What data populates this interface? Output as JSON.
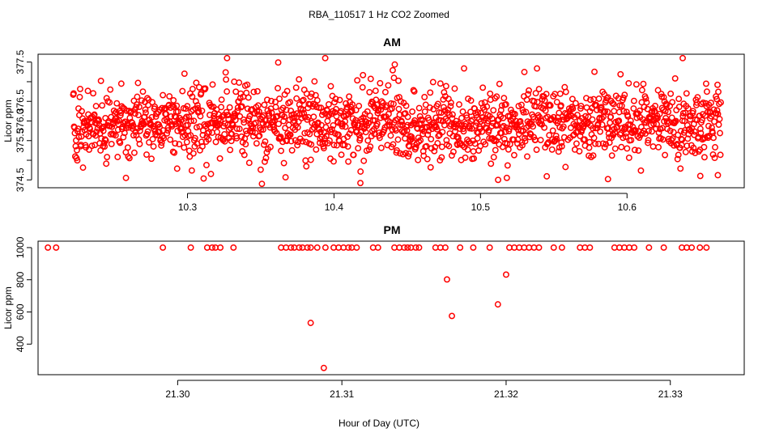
{
  "title": "RBA_110517  1 Hz CO2 Zoomed",
  "xlabel": "Hour of Day (UTC)",
  "point_color": "#ff0000",
  "chart_data": [
    {
      "type": "scatter",
      "title": "AM",
      "ylabel": "Licor ppm",
      "xlim": [
        10.198,
        10.68
      ],
      "ylim": [
        374.3,
        377.7
      ],
      "xticks": [
        10.3,
        10.4,
        10.5,
        10.6
      ],
      "xtick_labels": [
        "10.3",
        "10.4",
        "10.5",
        "10.6"
      ],
      "yticks": [
        374.5,
        375.0,
        375.5,
        376.0,
        376.5,
        377.0,
        377.5
      ],
      "ytick_labels": [
        "374.5",
        "",
        "375.5",
        "376.0",
        "376.5",
        "",
        "377.5"
      ],
      "x_range": [
        10.222,
        10.664
      ],
      "n_points": 1590,
      "y_center": 375.95,
      "y_spread": 0.45,
      "y_min": 374.4,
      "y_max": 377.6,
      "highlights": [
        {
          "x": 10.327,
          "y": 377.6
        },
        {
          "x": 10.394,
          "y": 377.6
        },
        {
          "x": 10.638,
          "y": 377.6
        },
        {
          "x": 10.418,
          "y": 374.42
        },
        {
          "x": 10.258,
          "y": 374.55
        },
        {
          "x": 10.316,
          "y": 374.65
        },
        {
          "x": 10.512,
          "y": 374.5
        },
        {
          "x": 10.587,
          "y": 374.52
        },
        {
          "x": 10.65,
          "y": 374.6
        },
        {
          "x": 10.662,
          "y": 374.62
        }
      ]
    },
    {
      "type": "scatter",
      "title": "PM",
      "ylabel": "Licor ppm",
      "xlim": [
        21.2915,
        21.3345
      ],
      "ylim": [
        210,
        1040
      ],
      "xticks": [
        21.3,
        21.31,
        21.32,
        21.33
      ],
      "xtick_labels": [
        "21.30",
        "21.31",
        "21.32",
        "21.33"
      ],
      "yticks": [
        400,
        600,
        800,
        1000
      ],
      "ytick_labels": [
        "400",
        "600",
        "800",
        "1000"
      ],
      "points": [
        {
          "x": 21.2921,
          "y": 1000
        },
        {
          "x": 21.2926,
          "y": 1000
        },
        {
          "x": 21.2991,
          "y": 1000
        },
        {
          "x": 21.3008,
          "y": 1000
        },
        {
          "x": 21.3018,
          "y": 1000
        },
        {
          "x": 21.3021,
          "y": 1000
        },
        {
          "x": 21.3023,
          "y": 1000
        },
        {
          "x": 21.3026,
          "y": 1000
        },
        {
          "x": 21.3034,
          "y": 1000
        },
        {
          "x": 21.3063,
          "y": 1000
        },
        {
          "x": 21.3066,
          "y": 1000
        },
        {
          "x": 21.3069,
          "y": 1000
        },
        {
          "x": 21.3071,
          "y": 1000
        },
        {
          "x": 21.3074,
          "y": 1000
        },
        {
          "x": 21.3076,
          "y": 1000
        },
        {
          "x": 21.3079,
          "y": 1000
        },
        {
          "x": 21.3081,
          "y": 1000
        },
        {
          "x": 21.3085,
          "y": 1000
        },
        {
          "x": 21.309,
          "y": 1000
        },
        {
          "x": 21.3095,
          "y": 1000
        },
        {
          "x": 21.3098,
          "y": 1000
        },
        {
          "x": 21.3101,
          "y": 1000
        },
        {
          "x": 21.3104,
          "y": 1000
        },
        {
          "x": 21.3106,
          "y": 1000
        },
        {
          "x": 21.3109,
          "y": 1000
        },
        {
          "x": 21.3119,
          "y": 1000
        },
        {
          "x": 21.3122,
          "y": 1000
        },
        {
          "x": 21.3132,
          "y": 1000
        },
        {
          "x": 21.3135,
          "y": 1000
        },
        {
          "x": 21.3138,
          "y": 1000
        },
        {
          "x": 21.314,
          "y": 1000
        },
        {
          "x": 21.3142,
          "y": 1000
        },
        {
          "x": 21.3145,
          "y": 1000
        },
        {
          "x": 21.3147,
          "y": 1000
        },
        {
          "x": 21.3157,
          "y": 1000
        },
        {
          "x": 21.316,
          "y": 1000
        },
        {
          "x": 21.3163,
          "y": 1000
        },
        {
          "x": 21.3172,
          "y": 1000
        },
        {
          "x": 21.318,
          "y": 1000
        },
        {
          "x": 21.319,
          "y": 1000
        },
        {
          "x": 21.3202,
          "y": 1000
        },
        {
          "x": 21.3205,
          "y": 1000
        },
        {
          "x": 21.3208,
          "y": 1000
        },
        {
          "x": 21.3211,
          "y": 1000
        },
        {
          "x": 21.3214,
          "y": 1000
        },
        {
          "x": 21.3217,
          "y": 1000
        },
        {
          "x": 21.322,
          "y": 1000
        },
        {
          "x": 21.3229,
          "y": 1000
        },
        {
          "x": 21.3234,
          "y": 1000
        },
        {
          "x": 21.3245,
          "y": 1000
        },
        {
          "x": 21.3248,
          "y": 1000
        },
        {
          "x": 21.3251,
          "y": 1000
        },
        {
          "x": 21.3266,
          "y": 1000
        },
        {
          "x": 21.3269,
          "y": 1000
        },
        {
          "x": 21.3272,
          "y": 1000
        },
        {
          "x": 21.3275,
          "y": 1000
        },
        {
          "x": 21.3278,
          "y": 1000
        },
        {
          "x": 21.3287,
          "y": 1000
        },
        {
          "x": 21.3296,
          "y": 1000
        },
        {
          "x": 21.3307,
          "y": 1000
        },
        {
          "x": 21.331,
          "y": 1000
        },
        {
          "x": 21.3313,
          "y": 1000
        },
        {
          "x": 21.3318,
          "y": 1000
        },
        {
          "x": 21.3322,
          "y": 1000
        },
        {
          "x": 21.3081,
          "y": 532
        },
        {
          "x": 21.3089,
          "y": 252
        },
        {
          "x": 21.3164,
          "y": 802
        },
        {
          "x": 21.3167,
          "y": 575
        },
        {
          "x": 21.3195,
          "y": 647
        },
        {
          "x": 21.32,
          "y": 832
        }
      ]
    }
  ]
}
